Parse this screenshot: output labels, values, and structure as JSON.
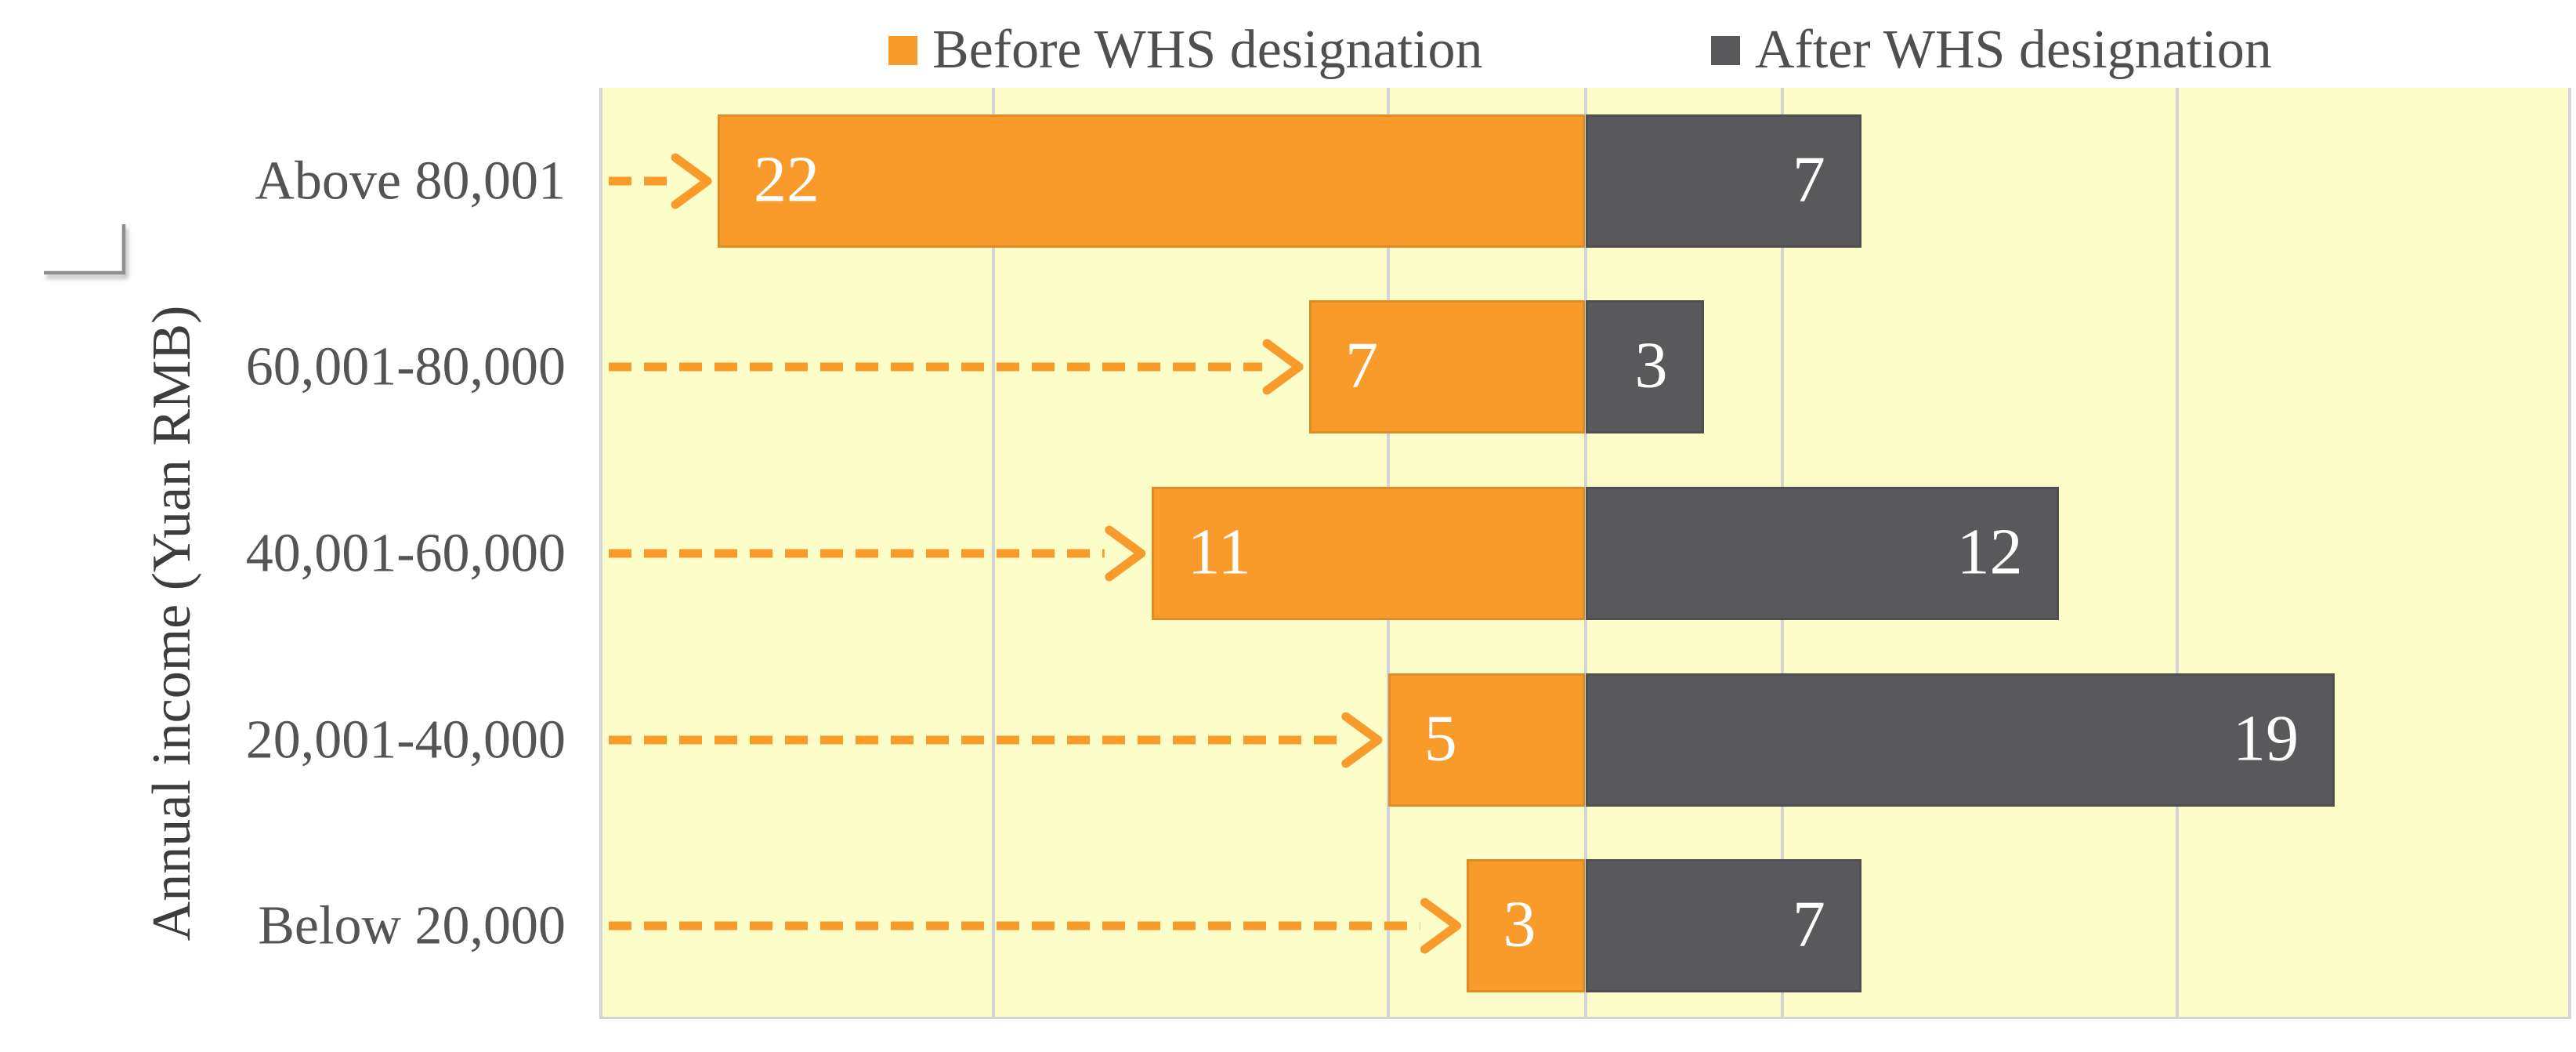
{
  "legend": {
    "items": [
      {
        "label": "Before WHS designation"
      },
      {
        "label": "After WHS designation"
      }
    ]
  },
  "y_axis": {
    "title": "Annual income (Yuan RMB)"
  },
  "chart_data": {
    "type": "bar",
    "orientation": "horizontal-diverging",
    "title": "",
    "xlabel": "",
    "ylabel": "Annual income (Yuan RMB)",
    "categories": [
      "Above 80,001",
      "60,001-80,000",
      "40,001-60,000",
      "20,001-40,000",
      "Below 20,000"
    ],
    "series": [
      {
        "name": "Before WHS designation",
        "side": "left",
        "color": "#F99B2B",
        "values": [
          22,
          7,
          11,
          5,
          3
        ]
      },
      {
        "name": "After WHS designation",
        "side": "right",
        "color": "#59595B",
        "values": [
          7,
          3,
          12,
          19,
          7
        ]
      }
    ],
    "data_labels": {
      "before": [
        "22",
        "7",
        "11",
        "5",
        "3"
      ],
      "after": [
        "7",
        "3",
        "12",
        "19",
        "7"
      ]
    },
    "xlim": [
      -25,
      25
    ],
    "gridline_values": [
      -25,
      -15,
      -5,
      5,
      15,
      25
    ],
    "axis_value": 0,
    "grid": true,
    "legend_position": "top",
    "plot_bg": "#FDFDCA",
    "gridline_color": "#D4D4D8",
    "value_label_color": "#FFFFFF",
    "category_label_color": "#545454",
    "arrows": {
      "style": "dashed",
      "color": "#F99B2B",
      "points_to": "start of Before-WHS bar for each category"
    }
  }
}
